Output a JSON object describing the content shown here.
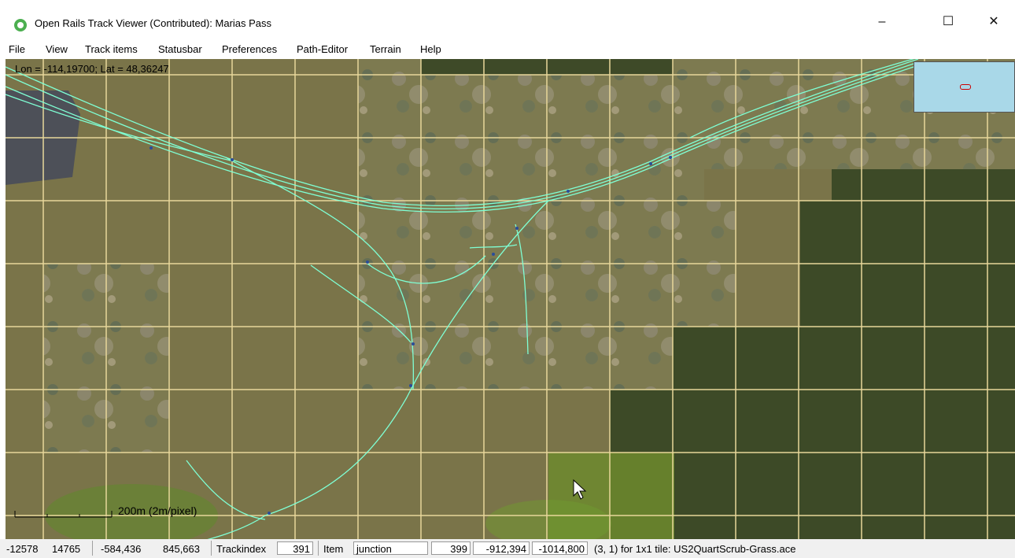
{
  "window": {
    "title": "Open Rails Track Viewer (Contributed): Marias Pass",
    "controls": [
      "–",
      "☐",
      "✕"
    ]
  },
  "menu": [
    "File",
    "View",
    "Track items",
    "Statusbar",
    "Preferences",
    "Path-Editor",
    "Terrain",
    "Help"
  ],
  "map": {
    "coords": "Lon = -114,19700; Lat = 48,36247",
    "scale": "200m (2m/pixel)",
    "track_color": "#7fffd4",
    "grid_color": "#e8d79a"
  },
  "status": {
    "tile_x": "-12578",
    "tile_z": "14765",
    "x": "-584,436",
    "z": "845,663",
    "trackindex_label": "Trackindex",
    "trackindex": "391",
    "item_label": "Item",
    "item": "junction",
    "item_index": "399",
    "item_x": "-912,394",
    "item_z": "-1014,800",
    "tile_info": "(3, 1) for 1x1 tile: US2QuartScrub-Grass.ace"
  }
}
